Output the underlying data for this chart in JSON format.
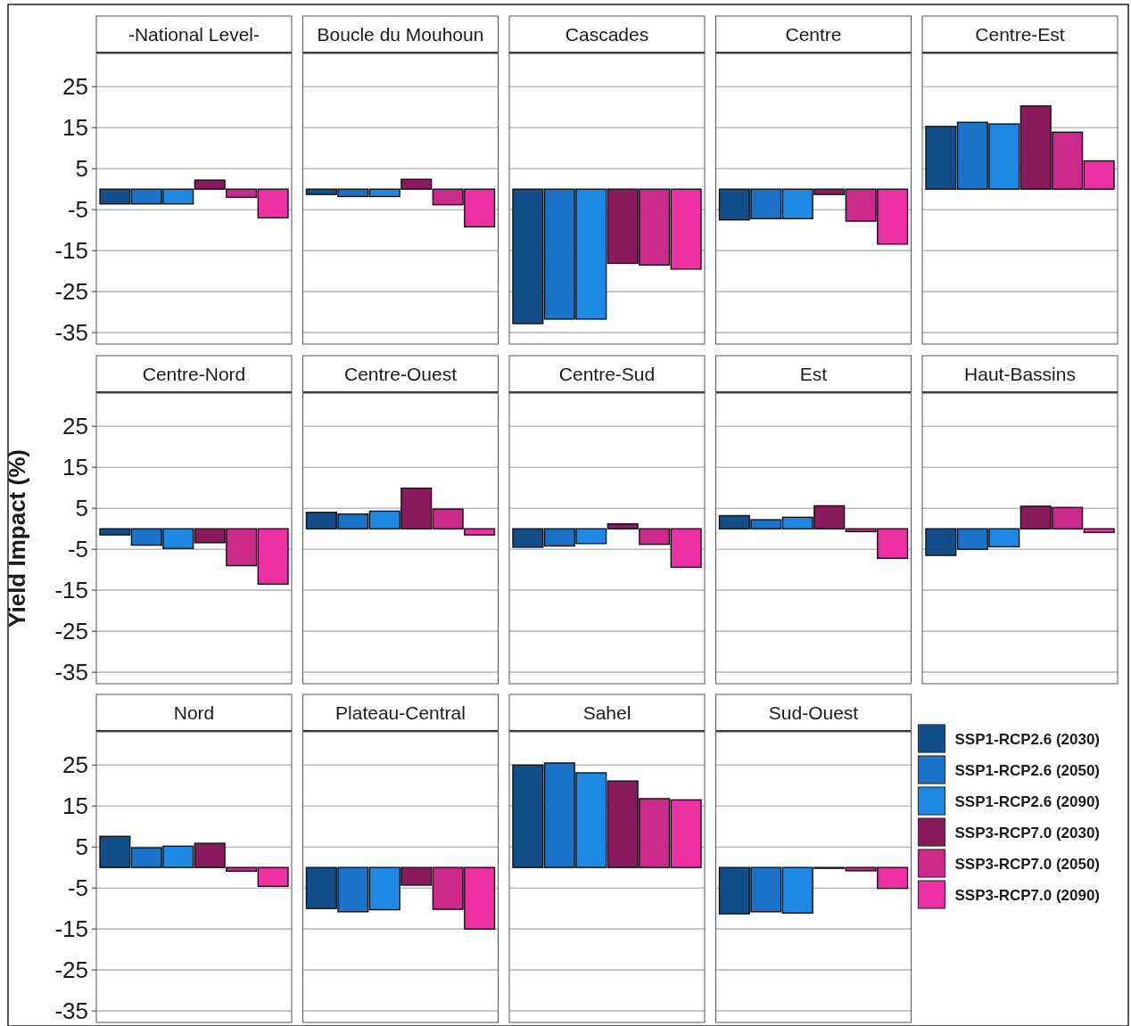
{
  "chart_data": [
    {
      "type": "bar",
      "categories": [
        "-National Level-",
        "Boucle du Mouhoun",
        "Cascades",
        "Centre",
        "Centre-Est"
      ],
      "ylim": [
        -37.8,
        33.1
      ],
      "yticks": [
        -35,
        -25,
        -15,
        -5,
        5,
        15,
        25
      ],
      "grid": "y",
      "series": [
        {
          "color": "#124e89",
          "values": [
            -3.6,
            -1.3,
            -32.8,
            -7.5,
            15.3
          ]
        },
        {
          "color": "#1a72c9",
          "values": [
            -3.6,
            -1.8,
            -31.7,
            -7.2,
            16.3
          ]
        },
        {
          "color": "#1e88e5",
          "values": [
            -3.6,
            -1.8,
            -31.7,
            -7.2,
            15.9
          ]
        },
        {
          "color": "#891a5c",
          "values": [
            2.2,
            2.4,
            -18.1,
            -1.3,
            20.3
          ]
        },
        {
          "color": "#cb2a8b",
          "values": [
            -2.0,
            -3.8,
            -18.5,
            -7.8,
            13.9
          ]
        },
        {
          "color": "#ed30a3",
          "values": [
            -7.0,
            -9.2,
            -19.5,
            -13.4,
            6.9
          ]
        }
      ]
    },
    {
      "type": "bar",
      "ylabel": "Yield Impact (%)",
      "categories": [
        "Centre-Nord",
        "Centre-Ouest",
        "Centre-Sud",
        "Est",
        "Haut-Bassins"
      ],
      "ylim": [
        -37.8,
        33.1
      ],
      "yticks": [
        -35,
        -25,
        -15,
        -5,
        5,
        15,
        25
      ],
      "grid": "y",
      "series": [
        {
          "color": "#124e89",
          "values": [
            -1.5,
            4.0,
            -4.5,
            3.2,
            -6.5
          ]
        },
        {
          "color": "#1a72c9",
          "values": [
            -4.0,
            3.6,
            -4.2,
            2.2,
            -5.0
          ]
        },
        {
          "color": "#1e88e5",
          "values": [
            -4.8,
            4.3,
            -3.6,
            2.8,
            -4.4
          ]
        },
        {
          "color": "#891a5c",
          "values": [
            -3.4,
            9.9,
            1.2,
            5.6,
            5.5
          ]
        },
        {
          "color": "#cb2a8b",
          "values": [
            -9.0,
            4.8,
            -3.8,
            -0.7,
            5.2
          ]
        },
        {
          "color": "#ed30a3",
          "values": [
            -13.5,
            -1.5,
            -9.4,
            -7.2,
            -0.9
          ]
        }
      ]
    },
    {
      "type": "bar",
      "categories": [
        "Nord",
        "Plateau-Central",
        "Sahel",
        "Sud-Ouest"
      ],
      "ylim": [
        -37.8,
        33.1
      ],
      "yticks": [
        -35,
        -25,
        -15,
        -5,
        5,
        15,
        25
      ],
      "grid": "y",
      "legend": "right",
      "series": [
        {
          "name": "SSP1-RCP2.6 (2030)",
          "color": "#124e89",
          "values": [
            7.6,
            -10.0,
            25.0,
            -11.3
          ]
        },
        {
          "name": "SSP1-RCP2.6 (2050)",
          "color": "#1a72c9",
          "values": [
            4.8,
            -10.8,
            25.5,
            -10.8
          ]
        },
        {
          "name": "SSP1-RCP2.6 (2090)",
          "color": "#1e88e5",
          "values": [
            5.2,
            -10.3,
            23.1,
            -11.1
          ]
        },
        {
          "name": "SSP3-RCP7.0 (2030)",
          "color": "#891a5c",
          "values": [
            5.9,
            -4.3,
            21.1,
            -0.2
          ]
        },
        {
          "name": "SSP3-RCP7.0 (2050)",
          "color": "#cb2a8b",
          "values": [
            -0.9,
            -10.2,
            16.8,
            -0.8
          ]
        },
        {
          "name": "SSP3-RCP7.0 (2090)",
          "color": "#ed30a3",
          "values": [
            -4.6,
            -15.0,
            16.5,
            -5.1
          ]
        }
      ]
    }
  ]
}
